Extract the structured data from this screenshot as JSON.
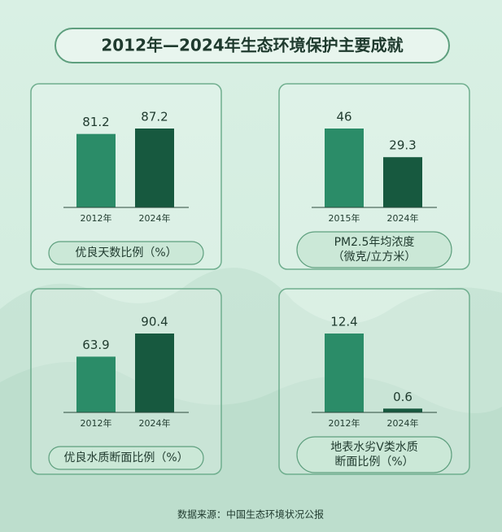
{
  "title": "2012年—2024年生态环境保护主要成就",
  "source": "数据来源：中国生态环境状况公报",
  "chart_data": [
    {
      "type": "bar",
      "title": [
        "优良天数比例（%）"
      ],
      "categories": [
        "2012年",
        "2024年"
      ],
      "values": [
        81.2,
        87.2
      ],
      "colors": [
        "#2b8c68",
        "#17593f"
      ]
    },
    {
      "type": "bar",
      "title": [
        "PM2.5年均浓度",
        "（微克/立方米）"
      ],
      "categories": [
        "2015年",
        "2024年"
      ],
      "values": [
        46,
        29.3
      ],
      "colors": [
        "#2b8c68",
        "#17593f"
      ]
    },
    {
      "type": "bar",
      "title": [
        "优良水质断面比例（%）"
      ],
      "categories": [
        "2012年",
        "2024年"
      ],
      "values": [
        63.9,
        90.4
      ],
      "colors": [
        "#2b8c68",
        "#17593f"
      ]
    },
    {
      "type": "bar",
      "title": [
        "地表水劣V类水质",
        "断面比例（%）"
      ],
      "categories": [
        "2012年",
        "2024年"
      ],
      "values": [
        12.4,
        0.6
      ],
      "colors": [
        "#2b8c68",
        "#17593f"
      ]
    }
  ]
}
